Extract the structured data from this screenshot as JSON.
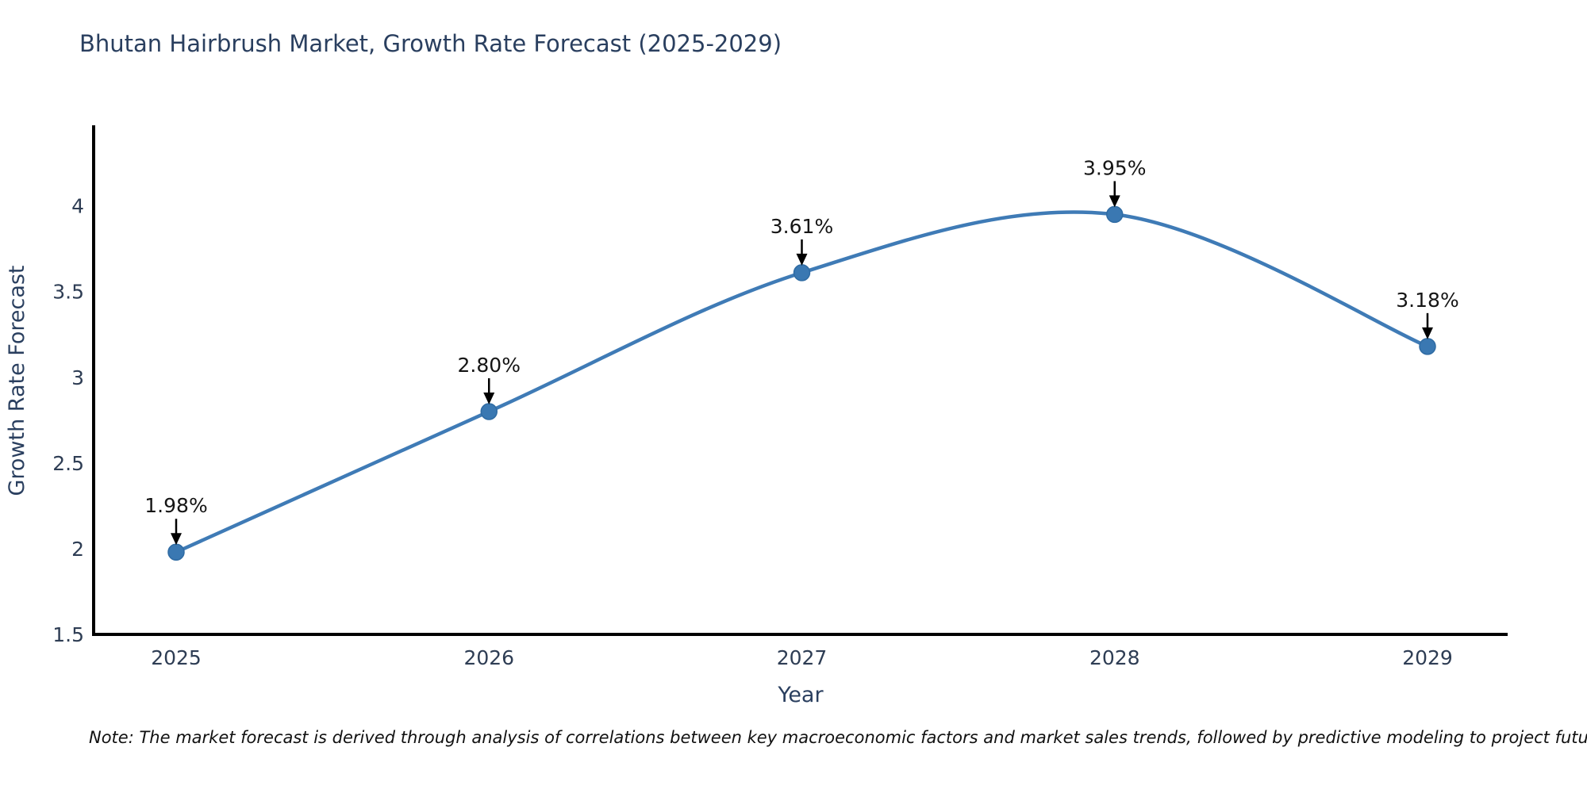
{
  "chart": {
    "title": "Bhutan Hairbrush Market, Growth Rate Forecast (2025-2029)",
    "note": "Note: The market forecast is derived through analysis of correlations between key macroeconomic factors and market sales trends, followed by predictive modeling to project future sales"
  },
  "chart_data": {
    "type": "line",
    "title": "Bhutan Hairbrush Market, Growth Rate Forecast (2025-2029)",
    "xlabel": "Year",
    "ylabel": "Growth Rate Forecast",
    "categories": [
      "2025",
      "2026",
      "2027",
      "2028",
      "2029"
    ],
    "series": [
      {
        "name": "Growth Rate Forecast",
        "values": [
          1.98,
          2.8,
          3.61,
          3.95,
          3.18
        ],
        "point_labels": [
          "1.98%",
          "2.80%",
          "3.61%",
          "3.95%",
          "3.18%"
        ]
      }
    ],
    "line_shape": "spline",
    "markers": true,
    "annotations_arrow": true,
    "ylim": [
      1.5,
      4.47
    ],
    "yticks": [
      1.5,
      2,
      2.5,
      3,
      3.5,
      4
    ],
    "ytick_labels": [
      "1.5",
      "2",
      "2.5",
      "3",
      "3.5",
      "4"
    ],
    "grid": false,
    "legend_position": "none",
    "colors": {
      "line": "#3f7bb6",
      "marker": "#3a78b2",
      "marker_edge": "#2f6ba3",
      "axis_line": "#000000",
      "annotation_text": "#151515",
      "annotation_arrow": "#000000",
      "title_text": "#2a3f5f",
      "tick_text": "#2e3d54"
    },
    "note": "Note: The market forecast is derived through analysis of correlations between key macroeconomic factors and market sales trends, followed by predictive modeling to project future sales"
  }
}
